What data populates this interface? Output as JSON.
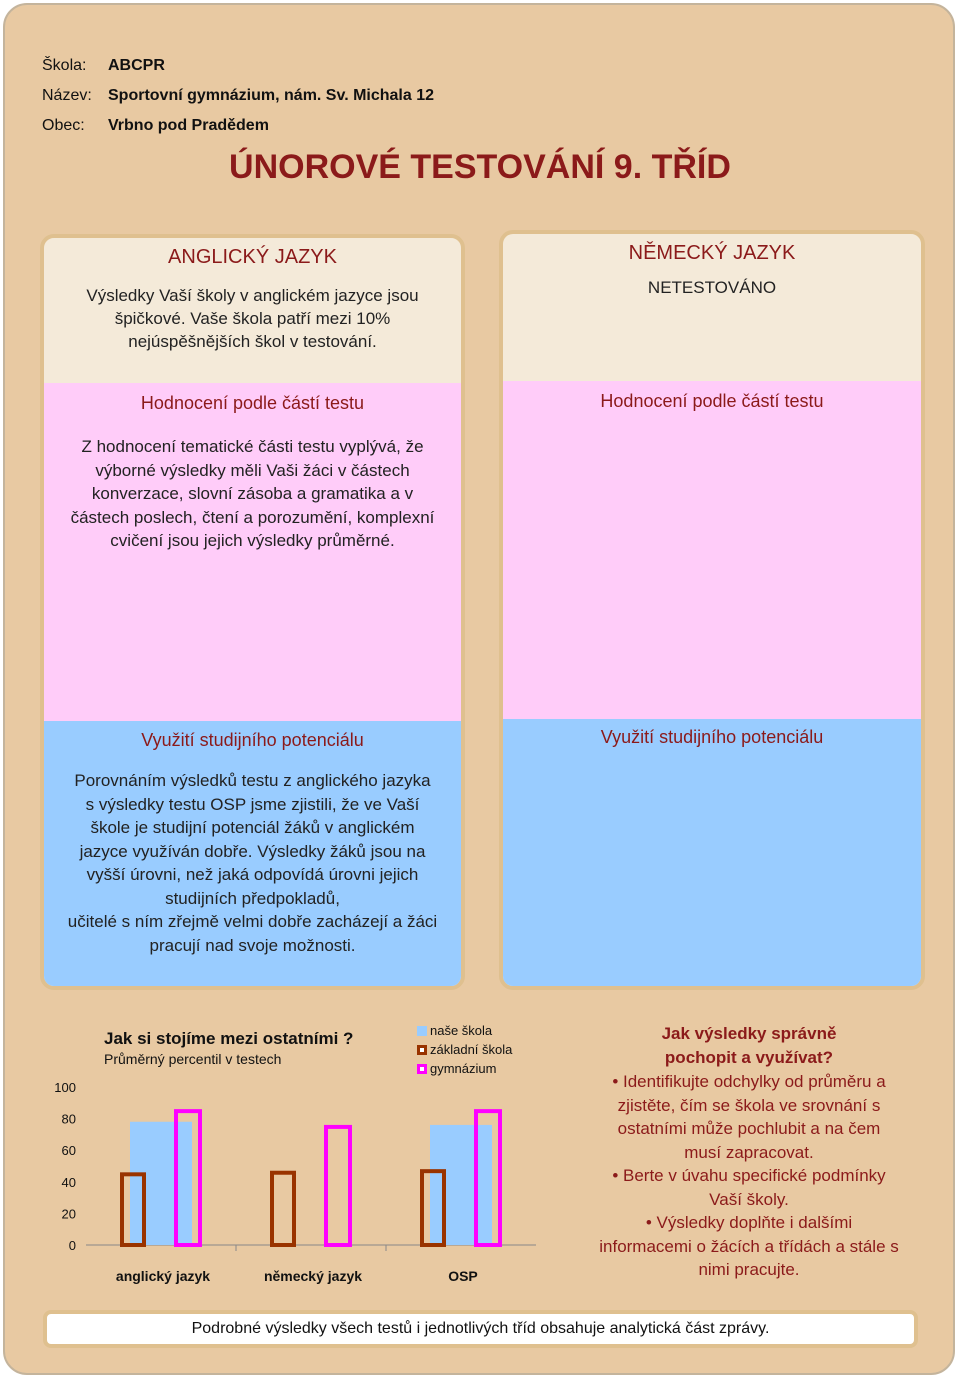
{
  "school": {
    "code_label": "Škola:",
    "code": "ABCPR",
    "name_label": "Název:",
    "name": "Sportovní gymnázium, nám. Sv. Michala 12",
    "town_label": "Obec:",
    "town": "Vrbno pod Pradědem"
  },
  "main_title": "ÚNOROVÉ TESTOVÁNÍ 9. TŘÍD",
  "english": {
    "title": "ANGLICKÝ JAZYK",
    "summary_lines": [
      "Výsledky Vaší školy v anglickém jazyce jsou",
      "špičkové. Vaše škola patří mezi 10%",
      "nejúspěšnějších škol v testování."
    ],
    "parts_title": "Hodnocení podle částí testu",
    "parts_lines": [
      "Z hodnocení tematické části testu vyplývá, že",
      "výborné výsledky měli Vaši žáci v částech",
      "konverzace, slovní zásoba a gramatika a v",
      "částech poslech, čtení a porozumění, komplexní",
      "cvičení jsou jejich výsledky průměrné."
    ],
    "potential_title": "Využití studijního potenciálu",
    "potential_lines": [
      "Porovnáním výsledků testu z anglického jazyka",
      "s výsledky testu OSP jsme zjistili, že ve Vaší",
      "škole je studijní potenciál žáků v anglickém",
      "jazyce využíván dobře. Výsledky žáků jsou na",
      "vyšší úrovni, než jaká odpovídá úrovni jejich",
      "studijních předpokladů,",
      "učitelé s ním zřejmě velmi dobře zacházejí a žáci",
      "pracují nad svoje možnosti."
    ]
  },
  "german": {
    "title": "NĚMECKÝ JAZYK",
    "status": "NETESTOVÁNO",
    "parts_title": "Hodnocení podle částí testu",
    "potential_title": "Využití studijního potenciálu"
  },
  "chart_data": {
    "type": "bar",
    "title": "Jak si stojíme mezi ostatními ?",
    "subtitle": "Průměrný percentil v testech",
    "categories": [
      "anglický jazyk",
      "německý jazyk",
      "OSP"
    ],
    "series": [
      {
        "name": "naše škola",
        "values": [
          78,
          null,
          76
        ],
        "color": "#99ccff"
      },
      {
        "name": "základní škola",
        "values": [
          46,
          47,
          48
        ],
        "color": "#993300"
      },
      {
        "name": "gymnázium",
        "values": [
          86,
          76,
          86
        ],
        "color": "#ff00ff"
      }
    ],
    "yticks": [
      0,
      20,
      40,
      60,
      80,
      100
    ],
    "ylim": [
      0,
      100
    ],
    "legend": "top-right"
  },
  "tips": {
    "title_lines": [
      "Jak výsledky správně",
      "pochopit a využívat?"
    ],
    "items": [
      [
        "• Identifikujte odchylky od průměru a",
        "zjistěte, čím se škola ve srovnání s",
        "ostatními může pochlubit a na čem",
        "musí zapracovat."
      ],
      [
        "• Berte v úvahu specifické podmínky",
        "Vaší školy."
      ],
      [
        "• Výsledky doplňte i dalšími",
        "informacemi o žácích a třídách a stále s",
        "nimi pracujte."
      ]
    ]
  },
  "footer": "Podrobné výsledky všech testů i jednotlivých tříd obsahuje analytická část zprávy."
}
